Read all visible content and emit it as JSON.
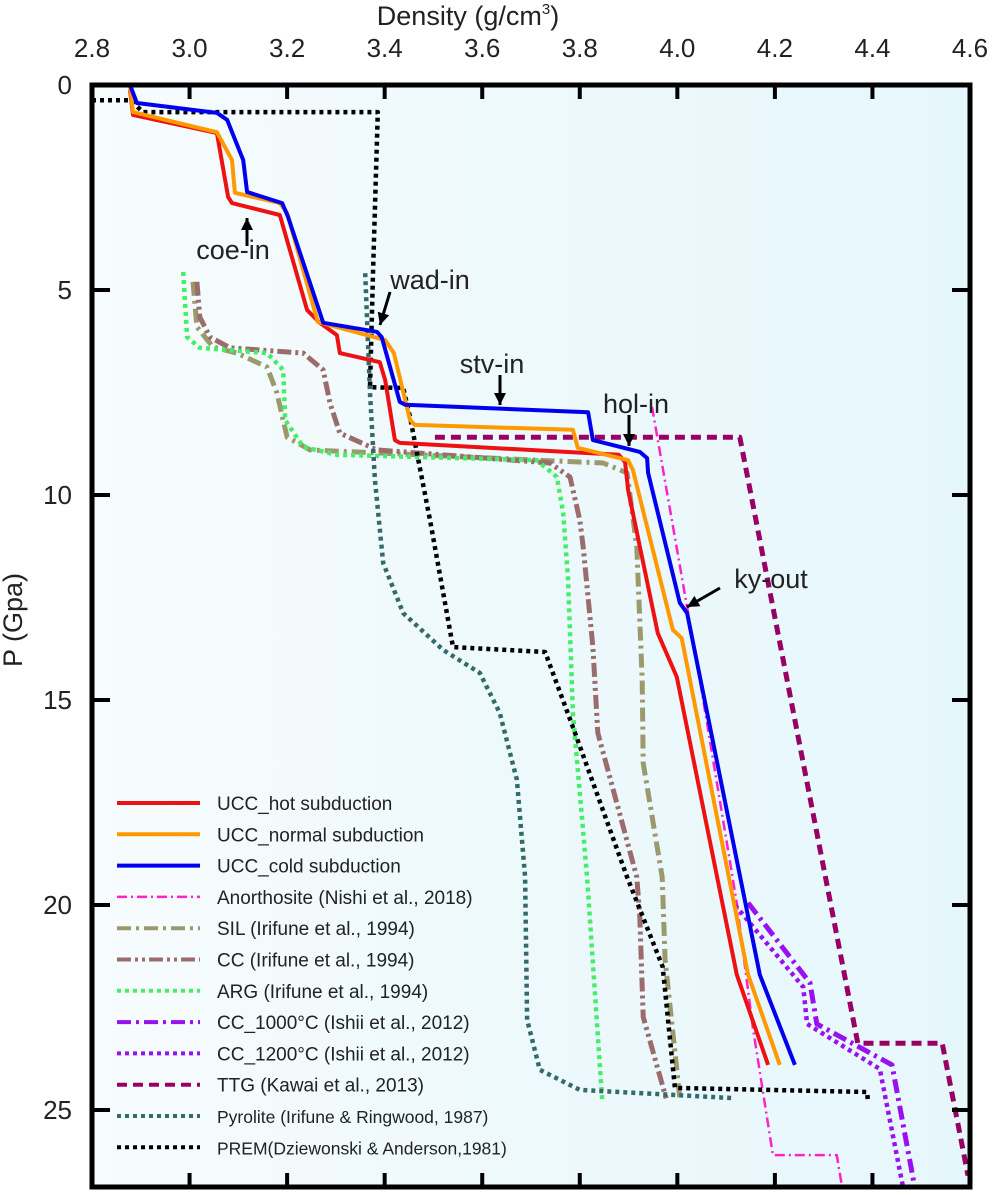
{
  "chart_data": {
    "type": "line",
    "xlabel": "Density (g/cm3)",
    "xlabel_main": "Density (g/cm",
    "xlabel_sup": "3",
    "xlabel_close": ")",
    "ylabel": "P (Gpa)",
    "xlim": [
      2.8,
      4.6
    ],
    "ylim": [
      0,
      27
    ],
    "y_inverted": true,
    "x_axis_position": "top",
    "x_ticks": [
      "2.8",
      "3.0",
      "3.2",
      "3.4",
      "3.6",
      "3.8",
      "4.0",
      "4.2",
      "4.4",
      "4.6"
    ],
    "y_ticks": [
      "0",
      "5",
      "10",
      "15",
      "20",
      "25"
    ],
    "grid": false,
    "legend_position": "bottom-left",
    "series": [
      {
        "name": "UCC_hot subduction",
        "color": "#ee1111",
        "style": "solid",
        "points": [
          [
            2.878,
            0.12
          ],
          [
            2.884,
            0.73
          ],
          [
            3.056,
            1.17
          ],
          [
            3.079,
            2.73
          ],
          [
            3.087,
            2.88
          ],
          [
            3.185,
            3.17
          ],
          [
            3.241,
            5.49
          ],
          [
            3.267,
            5.8
          ],
          [
            3.302,
            6.1
          ],
          [
            3.308,
            6.54
          ],
          [
            3.39,
            6.76
          ],
          [
            3.401,
            7.2
          ],
          [
            3.421,
            8.66
          ],
          [
            3.431,
            8.73
          ],
          [
            3.88,
            9.02
          ],
          [
            3.893,
            9.2
          ],
          [
            3.899,
            9.88
          ],
          [
            3.96,
            13.37
          ],
          [
            3.999,
            14.44
          ],
          [
            4.122,
            21.7
          ],
          [
            4.186,
            23.9
          ]
        ]
      },
      {
        "name": "UCC_normal subduction",
        "color": "#ff9900",
        "style": "solid",
        "points": [
          [
            2.878,
            0
          ],
          [
            2.884,
            0.66
          ],
          [
            3.056,
            1.15
          ],
          [
            3.087,
            1.83
          ],
          [
            3.093,
            2.63
          ],
          [
            3.185,
            2.88
          ],
          [
            3.2,
            3.12
          ],
          [
            3.263,
            5.78
          ],
          [
            3.401,
            6.22
          ],
          [
            3.419,
            6.54
          ],
          [
            3.452,
            8.17
          ],
          [
            3.462,
            8.29
          ],
          [
            3.786,
            8.41
          ],
          [
            3.796,
            8.85
          ],
          [
            3.899,
            9.15
          ],
          [
            3.909,
            9.39
          ],
          [
            3.991,
            13.29
          ],
          [
            4.009,
            13.49
          ],
          [
            4.145,
            21.7
          ],
          [
            4.21,
            23.9
          ]
        ]
      },
      {
        "name": "UCC_cold subduction",
        "color": "#0000ee",
        "style": "solid",
        "points": [
          [
            2.878,
            0
          ],
          [
            2.892,
            0.44
          ],
          [
            3.056,
            0.68
          ],
          [
            3.077,
            0.85
          ],
          [
            3.11,
            1.83
          ],
          [
            3.118,
            2.61
          ],
          [
            3.19,
            2.88
          ],
          [
            3.202,
            3.22
          ],
          [
            3.274,
            5.8
          ],
          [
            3.384,
            6.02
          ],
          [
            3.394,
            6.15
          ],
          [
            3.431,
            7.73
          ],
          [
            3.442,
            7.8
          ],
          [
            3.817,
            7.98
          ],
          [
            3.827,
            8.66
          ],
          [
            3.923,
            8.95
          ],
          [
            3.938,
            9.1
          ],
          [
            3.94,
            9.46
          ],
          [
            4.005,
            12.63
          ],
          [
            4.02,
            12.88
          ],
          [
            4.169,
            21.7
          ],
          [
            4.241,
            23.9
          ]
        ]
      },
      {
        "name": "Anorthosite (Nishi et al., 2018)",
        "color": "#ff22cc",
        "style": "dashdot-thin",
        "points": [
          [
            3.948,
            7.85
          ],
          [
            4.046,
            14.5
          ],
          [
            4.122,
            19.95
          ],
          [
            4.155,
            23.0
          ],
          [
            4.196,
            26.1
          ],
          [
            4.327,
            26.1
          ],
          [
            4.338,
            26.9
          ]
        ]
      },
      {
        "name": "SIL (Irifune et al., 1994)",
        "color": "#9c9a6c",
        "style": "dashdot",
        "points": [
          [
            3.007,
            4.8
          ],
          [
            3.015,
            5.9
          ],
          [
            3.048,
            6.39
          ],
          [
            3.097,
            6.54
          ],
          [
            3.159,
            6.88
          ],
          [
            3.179,
            7.51
          ],
          [
            3.2,
            8.59
          ],
          [
            3.247,
            8.9
          ],
          [
            3.712,
            9.15
          ],
          [
            3.848,
            9.22
          ],
          [
            3.897,
            9.46
          ],
          [
            3.917,
            11.27
          ],
          [
            3.928,
            14.51
          ],
          [
            3.93,
            16.54
          ],
          [
            3.969,
            19.32
          ],
          [
            3.975,
            21.34
          ],
          [
            4.005,
            24.71
          ]
        ]
      },
      {
        "name": "CC (Irifune et al., 1994)",
        "color": "#9c6c6c",
        "style": "dashdotdot",
        "points": [
          [
            3.015,
            4.8
          ],
          [
            3.021,
            5.66
          ],
          [
            3.042,
            6.15
          ],
          [
            3.083,
            6.41
          ],
          [
            3.233,
            6.54
          ],
          [
            3.274,
            6.95
          ],
          [
            3.288,
            7.76
          ],
          [
            3.308,
            8.49
          ],
          [
            3.384,
            8.9
          ],
          [
            3.575,
            9.07
          ],
          [
            3.739,
            9.22
          ],
          [
            3.78,
            9.56
          ],
          [
            3.8,
            10.61
          ],
          [
            3.807,
            11.27
          ],
          [
            3.827,
            13.71
          ],
          [
            3.837,
            15.8
          ],
          [
            3.917,
            19.32
          ],
          [
            3.923,
            20.29
          ],
          [
            3.93,
            22.73
          ],
          [
            3.979,
            24.8
          ]
        ]
      },
      {
        "name": "ARG (Irifune et al., 1994)",
        "color": "#44ee66",
        "style": "dotted",
        "points": [
          [
            2.987,
            4.56
          ],
          [
            2.995,
            6.15
          ],
          [
            3.021,
            6.41
          ],
          [
            3.159,
            6.54
          ],
          [
            3.192,
            6.95
          ],
          [
            3.196,
            8.17
          ],
          [
            3.233,
            8.83
          ],
          [
            3.302,
            9.02
          ],
          [
            3.712,
            9.15
          ],
          [
            3.753,
            9.56
          ],
          [
            3.766,
            10.44
          ],
          [
            3.776,
            12.07
          ],
          [
            3.786,
            15.32
          ],
          [
            3.815,
            19.32
          ],
          [
            3.846,
            24.76
          ]
        ]
      },
      {
        "name": "CC_1000°C (Ishii et al., 2012)",
        "color": "#9911ee",
        "style": "dashdot",
        "points": [
          [
            4.145,
            19.95
          ],
          [
            4.272,
            21.9
          ],
          [
            4.286,
            22.9
          ],
          [
            4.44,
            23.9
          ],
          [
            4.487,
            26.9
          ]
        ]
      },
      {
        "name": "CC_1200°C (Ishii et al., 2012)",
        "color": "#9911ee",
        "style": "dotted",
        "points": [
          [
            4.118,
            20.0
          ],
          [
            4.258,
            22.0
          ],
          [
            4.266,
            22.9
          ],
          [
            4.415,
            24.0
          ],
          [
            4.463,
            26.9
          ]
        ]
      },
      {
        "name": "TTG (Kawai et al., 2013)",
        "color": "#990066",
        "style": "dashed",
        "points": [
          [
            3.503,
            8.59
          ],
          [
            4.128,
            8.59
          ],
          [
            4.37,
            23.37
          ],
          [
            4.543,
            23.37
          ],
          [
            4.596,
            26.6
          ]
        ]
      },
      {
        "name": "Pyrolite (Irifune & Ringwood, 1987)",
        "color": "#336b6b",
        "style": "dotted",
        "points": [
          [
            3.36,
            4.59
          ],
          [
            3.37,
            7.51
          ],
          [
            3.38,
            9.63
          ],
          [
            3.397,
            11.66
          ],
          [
            3.438,
            12.88
          ],
          [
            3.52,
            13.78
          ],
          [
            3.595,
            14.34
          ],
          [
            3.636,
            15.32
          ],
          [
            3.671,
            16.95
          ],
          [
            3.688,
            19.32
          ],
          [
            3.692,
            22.8
          ],
          [
            3.718,
            24.02
          ],
          [
            3.8,
            24.51
          ],
          [
            4.114,
            24.71
          ]
        ]
      },
      {
        "name": "PREM(Dziewonski & Anderson,1981)",
        "color": "#000000",
        "style": "dotted",
        "points": [
          [
            2.8,
            0.37
          ],
          [
            2.878,
            0.37
          ],
          [
            2.905,
            0.66
          ],
          [
            3.386,
            0.66
          ],
          [
            3.376,
            4.59
          ],
          [
            3.37,
            7.37
          ],
          [
            3.438,
            7.39
          ],
          [
            3.452,
            8.1
          ],
          [
            3.493,
            10.61
          ],
          [
            3.54,
            13.71
          ],
          [
            3.729,
            13.83
          ],
          [
            3.786,
            15.66
          ],
          [
            3.897,
            19.32
          ],
          [
            3.97,
            21.51
          ],
          [
            3.995,
            24.46
          ],
          [
            4.389,
            24.56
          ],
          [
            4.391,
            24.83
          ]
        ]
      }
    ],
    "annotations": [
      {
        "text": "coe-in",
        "target": [
          3.118,
          3.2
        ],
        "arrow": "up"
      },
      {
        "text": "wad-in",
        "target": [
          3.384,
          6.0
        ],
        "arrow": "down-left"
      },
      {
        "text": "stv-in",
        "target": [
          3.64,
          7.95
        ],
        "arrow": "down"
      },
      {
        "text": "hol-in",
        "target": [
          3.88,
          8.8
        ],
        "arrow": "down"
      },
      {
        "text": "ky-out",
        "target": [
          4.02,
          12.9
        ],
        "arrow": "down-left"
      }
    ]
  }
}
